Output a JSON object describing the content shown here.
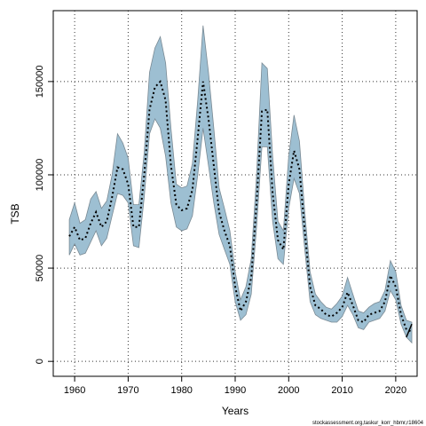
{
  "chart_data": {
    "type": "line",
    "xlabel": "Years",
    "ylabel": "TSB",
    "xlim": [
      1956,
      2024
    ],
    "ylim": [
      -8000,
      188000
    ],
    "xticks": [
      1960,
      1970,
      1980,
      1990,
      2000,
      2010,
      2020
    ],
    "yticks": [
      0,
      50000,
      100000,
      150000
    ],
    "ytick_labels": [
      "0",
      "50000",
      "100000",
      "150000"
    ],
    "grid": true,
    "band_color": "#9dbfd2",
    "band_edge_color": "#7a8a94",
    "line_color": "#000000",
    "estimate_style": "dotted",
    "x": [
      1959,
      1960,
      1961,
      1962,
      1963,
      1964,
      1965,
      1966,
      1967,
      1968,
      1969,
      1970,
      1971,
      1972,
      1973,
      1974,
      1975,
      1976,
      1977,
      1978,
      1979,
      1980,
      1981,
      1982,
      1983,
      1984,
      1985,
      1986,
      1987,
      1988,
      1989,
      1990,
      1991,
      1992,
      1993,
      1994,
      1995,
      1996,
      1997,
      1998,
      1999,
      2000,
      2001,
      2002,
      2003,
      2004,
      2005,
      2006,
      2007,
      2008,
      2009,
      2010,
      2011,
      2012,
      2013,
      2014,
      2015,
      2016,
      2017,
      2018,
      2019,
      2020,
      2021,
      2022,
      2023
    ],
    "series": [
      {
        "values": [
          67000,
          72000,
          65000,
          66000,
          74000,
          80000,
          72000,
          75000,
          88000,
          104000,
          103000,
          95000,
          72000,
          72000,
          100000,
          135000,
          147000,
          150000,
          140000,
          105000,
          84000,
          81000,
          82000,
          92000,
          120000,
          150000,
          130000,
          105000,
          80000,
          70000,
          62000,
          40000,
          27000,
          32000,
          45000,
          85000,
          134000,
          135000,
          90000,
          65000,
          60000,
          95000,
          113000,
          103000,
          70000,
          40000,
          30000,
          28000,
          25000,
          24000,
          26000,
          29000,
          37000,
          30000,
          22000,
          21000,
          25000,
          26000,
          27000,
          32000,
          46000,
          40000,
          25000,
          17000,
          16000
        ]
      },
      {
        "name": "",
        "values": [
          57000,
          63000,
          57000,
          58000,
          64000,
          70000,
          62000,
          66000,
          78000,
          90000,
          89000,
          85000,
          62000,
          61000,
          88000,
          122000,
          130000,
          125000,
          110000,
          85000,
          72000,
          70000,
          71000,
          78000,
          100000,
          125000,
          105000,
          85000,
          68000,
          60000,
          52000,
          32000,
          22000,
          25000,
          36000,
          72000,
          115000,
          115000,
          75000,
          55000,
          52000,
          82000,
          98000,
          90000,
          60000,
          32000,
          25000,
          23000,
          22000,
          21000,
          21000,
          24000,
          30000,
          25000,
          18000,
          17000,
          21000,
          22000,
          23000,
          27000,
          38000,
          33000,
          20000,
          13000,
          10000
        ]
      },
      {
        "name": "",
        "values": [
          76000,
          85000,
          74000,
          76000,
          87000,
          91000,
          82000,
          86000,
          100000,
          122000,
          117000,
          109000,
          84000,
          84000,
          112000,
          155000,
          168000,
          174000,
          160000,
          125000,
          95000,
          93000,
          94000,
          106000,
          140000,
          180000,
          155000,
          125000,
          93000,
          82000,
          70000,
          48000,
          33000,
          40000,
          55000,
          100000,
          160000,
          157000,
          110000,
          75000,
          70000,
          110000,
          132000,
          118000,
          80000,
          48000,
          36000,
          32000,
          29000,
          28000,
          31000,
          35000,
          45000,
          36000,
          27000,
          26000,
          29000,
          31000,
          32000,
          38000,
          54000,
          48000,
          30000,
          22000,
          21000
        ]
      }
    ],
    "recent_trend": {
      "x": [
        2022,
        2023
      ],
      "values": [
        13000,
        20000
      ]
    }
  },
  "footer": {
    "source": "stockassessment.org,taskur_korr_hbmr,r18604"
  }
}
